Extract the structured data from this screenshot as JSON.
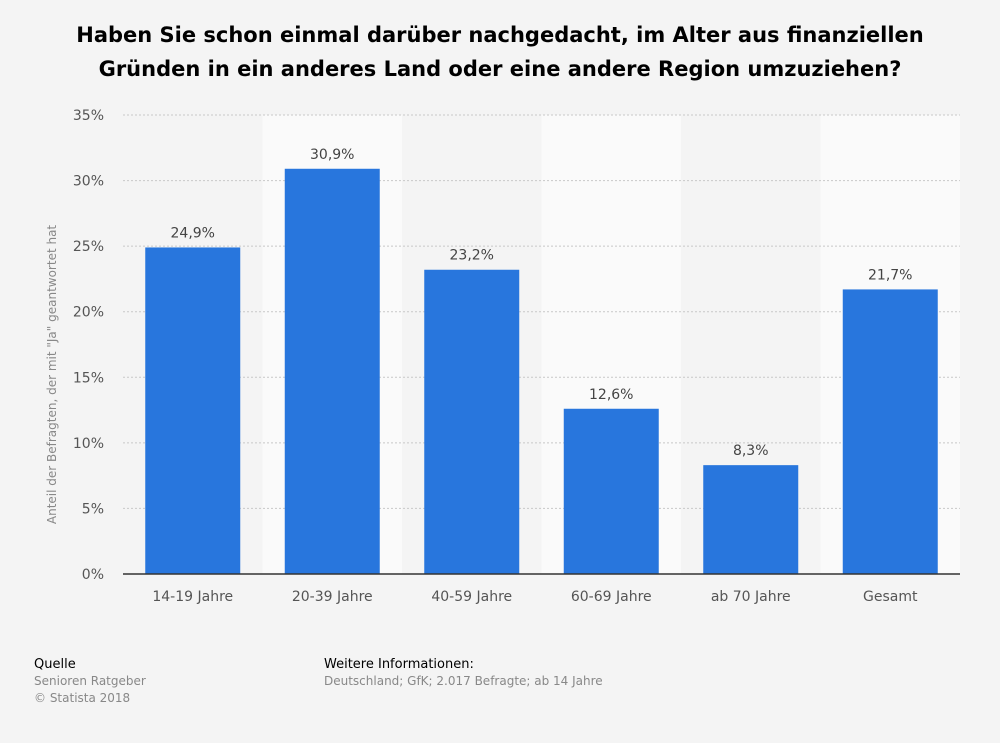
{
  "title_lines": [
    "Haben Sie schon einmal darüber nachgedacht, im Alter aus finanziellen",
    "Gründen in ein anderes Land oder eine andere Region umzuziehen?"
  ],
  "chart_data": {
    "type": "bar",
    "categories": [
      "14-19 Jahre",
      "20-39 Jahre",
      "40-59 Jahre",
      "60-69 Jahre",
      "ab 70 Jahre",
      "Gesamt"
    ],
    "values": [
      24.9,
      30.9,
      23.2,
      12.6,
      8.3,
      21.7
    ],
    "value_labels": [
      "24,9%",
      "30,9%",
      "23,2%",
      "12,6%",
      "8,3%",
      "21,7%"
    ],
    "ylabel": "Anteil der Befragten, der mit \"Ja\" geantwortet hat",
    "xlabel": "",
    "ylim": [
      0,
      35
    ],
    "yticks": [
      0,
      5,
      10,
      15,
      20,
      25,
      30,
      35
    ],
    "ytick_labels": [
      "0%",
      "5%",
      "10%",
      "15%",
      "20%",
      "25%",
      "30%",
      "35%"
    ],
    "bar_color": "#2876dd",
    "grid": true,
    "legend": "none"
  },
  "footer": {
    "source_heading": "Quelle",
    "source_lines": [
      "Senioren Ratgeber",
      "© Statista 2018"
    ],
    "info_heading": "Weitere Informationen:",
    "info_lines": [
      "Deutschland; GfK; 2.017 Befragte; ab 14 Jahre"
    ]
  }
}
